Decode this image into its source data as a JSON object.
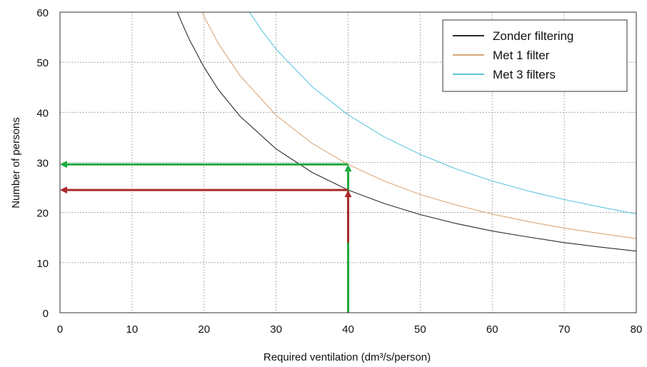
{
  "chart_data": {
    "type": "line",
    "xlabel": "Required ventilation  (dm³/s/person)",
    "ylabel": "Number of persons",
    "xlim": [
      0,
      80
    ],
    "ylim": [
      0,
      60
    ],
    "x_ticks": [
      0,
      10,
      20,
      30,
      40,
      50,
      60,
      70,
      80
    ],
    "y_ticks": [
      0,
      10,
      20,
      30,
      40,
      50,
      60
    ],
    "grid": true,
    "legend_position": "top-right",
    "series": [
      {
        "name": "Zonder filtering",
        "color": "#2b2b2b",
        "x": [
          16.3,
          17,
          18,
          20,
          22,
          25,
          30,
          35,
          40,
          45,
          50,
          55,
          60,
          65,
          70,
          75,
          80
        ],
        "y": [
          60,
          57.6,
          54.4,
          49,
          44.5,
          39.2,
          32.7,
          28,
          24.5,
          21.8,
          19.6,
          17.8,
          16.3,
          15.1,
          14,
          13.1,
          12.3
        ]
      },
      {
        "name": "Met 1 filter",
        "color": "#d9a87a",
        "x": [
          19.7,
          20,
          22,
          25,
          30,
          35,
          40,
          45,
          50,
          55,
          60,
          65,
          70,
          75,
          80
        ],
        "y": [
          60,
          59.1,
          53.7,
          47.3,
          39.4,
          33.8,
          29.6,
          26.3,
          23.6,
          21.5,
          19.7,
          18.2,
          16.9,
          15.8,
          14.8
        ]
      },
      {
        "name": "Met 3 filters",
        "color": "#5cc6dd",
        "x": [
          26.3,
          28,
          30,
          35,
          40,
          45,
          50,
          55,
          60,
          65,
          70,
          75,
          80
        ],
        "y": [
          60,
          56.4,
          52.6,
          45.1,
          39.5,
          35.1,
          31.6,
          28.7,
          26.3,
          24.3,
          22.6,
          21.1,
          19.7
        ]
      }
    ],
    "annotations": [
      {
        "kind": "vertical-arrow",
        "color": "#1faa3c",
        "x": 40,
        "y_from": 0,
        "y_to": 29.6
      },
      {
        "kind": "horizontal-arrow",
        "color": "#1faa3c",
        "y": 29.6,
        "x_from": 40,
        "x_to": 0
      },
      {
        "kind": "vertical-arrow",
        "color": "#a82a2a",
        "x": 40,
        "y_from": 14,
        "y_to": 24.5
      },
      {
        "kind": "horizontal-arrow",
        "color": "#a82a2a",
        "y": 24.5,
        "x_from": 40,
        "x_to": 0
      }
    ]
  }
}
